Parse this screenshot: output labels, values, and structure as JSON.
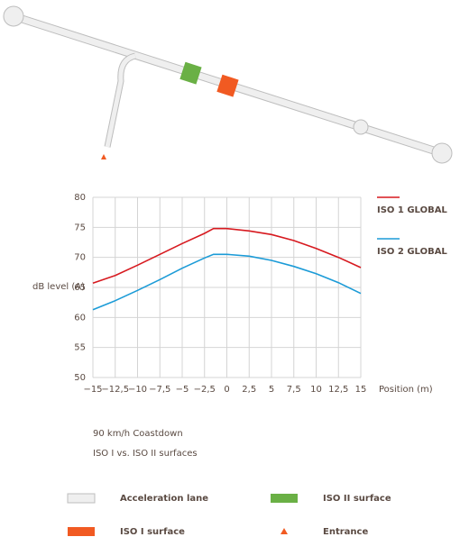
{
  "chart_data": {
    "type": "line",
    "x_label": "Position (m)",
    "y_label": "dB level (A)",
    "x": [
      -15,
      -12.5,
      -10,
      -7.5,
      -5,
      -2.5,
      -1.5,
      0,
      2.5,
      5,
      7.5,
      10,
      12.5,
      15
    ],
    "series": [
      {
        "name": "ISO 1 GLOBAL",
        "color": "#d7191f",
        "values": [
          65.7,
          67,
          68.7,
          70.5,
          72.3,
          74,
          74.8,
          74.8,
          74.4,
          73.8,
          72.8,
          71.5,
          70,
          68.3
        ]
      },
      {
        "name": "ISO 2 GLOBAL",
        "color": "#1b9bd7",
        "values": [
          61.3,
          62.8,
          64.5,
          66.3,
          68.2,
          69.9,
          70.5,
          70.5,
          70.2,
          69.5,
          68.5,
          67.3,
          65.8,
          64
        ]
      }
    ],
    "xlim": [
      -15,
      15
    ],
    "xticks": [
      {
        "value": -15,
        "label": "−15"
      },
      {
        "value": -12.5,
        "label": "−12,5"
      },
      {
        "value": -10,
        "label": "−10"
      },
      {
        "value": -7.5,
        "label": "−7,5"
      },
      {
        "value": -5,
        "label": "−5"
      },
      {
        "value": -2.5,
        "label": "−2,5"
      },
      0,
      {
        "value": 2.5,
        "label": "2,5"
      },
      5,
      {
        "value": 7.5,
        "label": "7,5"
      },
      10,
      {
        "value": 12.5,
        "label": "12,5"
      },
      15
    ],
    "ylim": [
      50,
      80
    ],
    "yticks": [
      50,
      55,
      60,
      65,
      70,
      75,
      80
    ],
    "grid": true
  },
  "caption": {
    "title": "90 km/h Coastdown",
    "subtitle": "ISO I vs. ISO II surfaces"
  },
  "map_legend": [
    "Acceleration lane",
    "ISO II surface",
    "ISO I surface",
    "Entrance"
  ]
}
